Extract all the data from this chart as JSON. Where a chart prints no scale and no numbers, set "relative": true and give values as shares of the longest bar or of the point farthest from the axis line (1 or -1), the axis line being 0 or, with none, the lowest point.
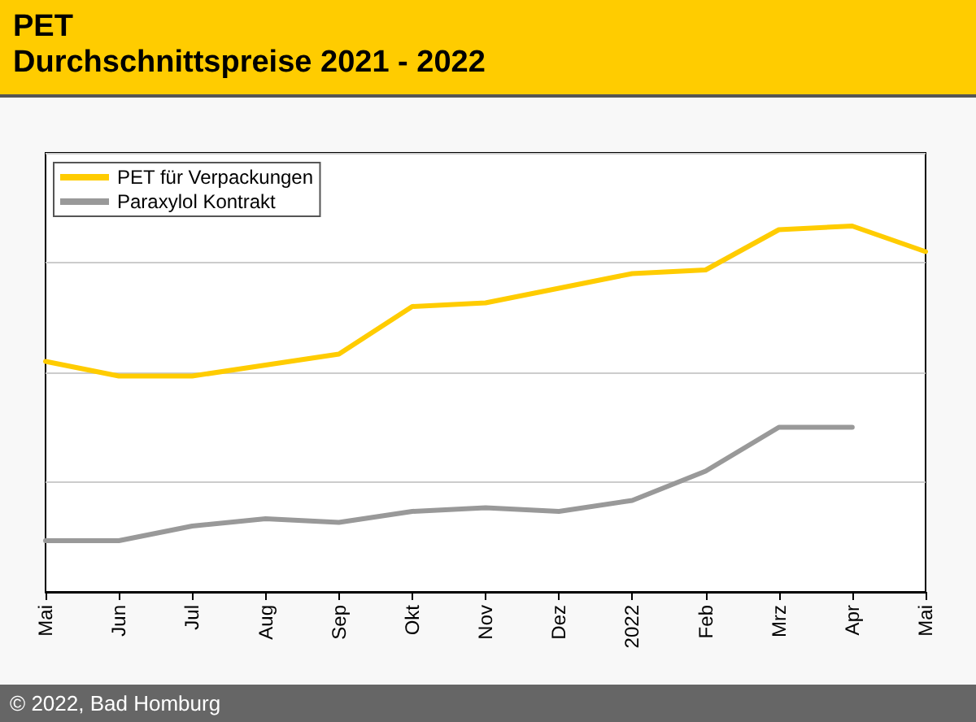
{
  "chart_data": {
    "type": "line",
    "title": "PET",
    "subtitle": "Durchschnittspreise 2021 - 2022",
    "relative": true,
    "grid": "y",
    "legend": "top left",
    "marker": "none",
    "line_style": "solid",
    "categories": [
      "Mai",
      "Jun",
      "Jul",
      "Aug",
      "Sep",
      "Okt",
      "Nov",
      "Dez",
      "2022",
      "Feb",
      "Mrz",
      "Apr",
      "Mai"
    ],
    "series": [
      {
        "name": "PET für Verpackungen",
        "color": "#ffcc00",
        "values": [
          0.63,
          0.59,
          0.59,
          0.62,
          0.65,
          0.78,
          0.79,
          0.83,
          0.87,
          0.88,
          0.99,
          1,
          0.93
        ]
      },
      {
        "name": "Paraxylol Kontrakt",
        "color": "#999999",
        "values": [
          0.14,
          0.14,
          0.18,
          0.2,
          0.19,
          0.22,
          0.23,
          0.22,
          0.25,
          0.33,
          0.45,
          0.45,
          null
        ]
      }
    ],
    "annotations": [
      "© 2022, Bad Homburg"
    ]
  }
}
